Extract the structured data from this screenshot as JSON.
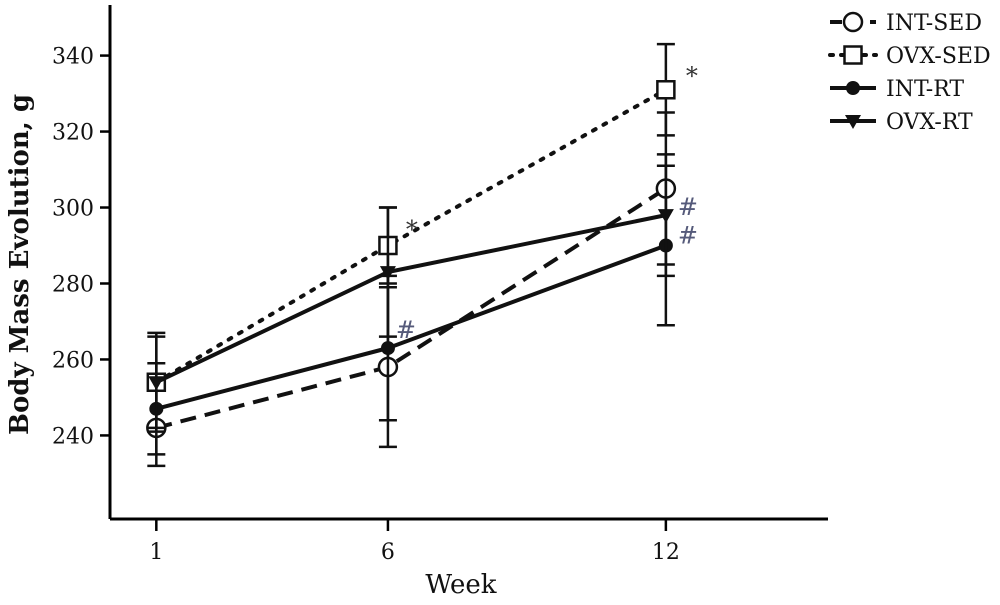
{
  "chart_data": {
    "type": "line",
    "xlabel": "Week",
    "ylabel": "Body Mass Evolution, g",
    "x_ticks": [
      1,
      6,
      12
    ],
    "x_range": [
      0,
      15.5
    ],
    "y_ticks": [
      240,
      260,
      280,
      300,
      320,
      340
    ],
    "ylim": [
      218,
      352
    ],
    "legend_position": "top-right",
    "series": [
      {
        "name": "INT-SED",
        "marker": "open-circle",
        "line": "dashed",
        "x": [
          1,
          6,
          12
        ],
        "y": [
          242,
          258,
          305
        ],
        "err": [
          10,
          21,
          20
        ]
      },
      {
        "name": "OVX-SED",
        "marker": "open-square",
        "line": "dotted",
        "x": [
          1,
          6,
          12
        ],
        "y": [
          254,
          290,
          331
        ],
        "err": [
          13,
          10,
          12
        ]
      },
      {
        "name": "INT-RT",
        "marker": "filled-circle",
        "line": "solid",
        "x": [
          1,
          6,
          12
        ],
        "y": [
          247,
          263,
          290
        ],
        "err": [
          12,
          19,
          21
        ]
      },
      {
        "name": "OVX-RT",
        "marker": "filled-triangle-down",
        "line": "solid",
        "x": [
          1,
          6,
          12
        ],
        "y": [
          254,
          283,
          298
        ],
        "err": [
          12,
          17,
          16
        ]
      }
    ],
    "annotations": [
      {
        "text": "*",
        "series": "OVX-SED",
        "x": 6
      },
      {
        "text": "*",
        "series": "OVX-SED",
        "x": 12
      },
      {
        "text": "#",
        "series": "INT-RT",
        "x": 6
      },
      {
        "text": "#",
        "series": "OVX-RT",
        "x": 12
      },
      {
        "text": "#",
        "series": "INT-RT",
        "x": 12
      }
    ]
  }
}
